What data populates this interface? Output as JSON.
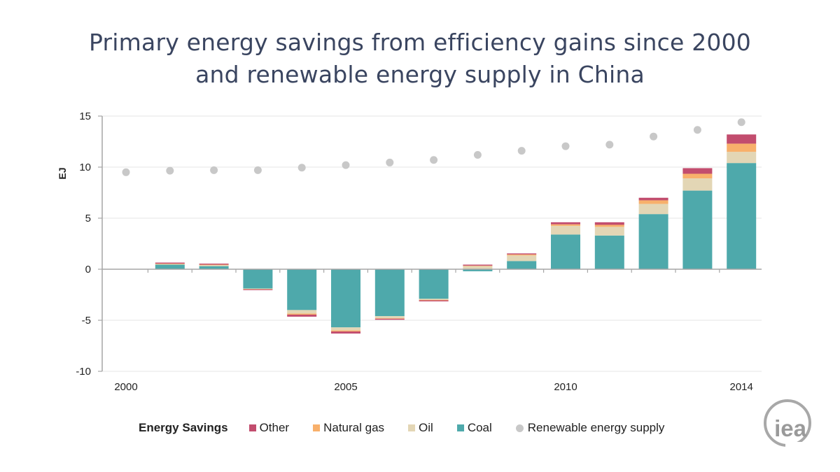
{
  "title_line1": "Primary energy savings from efficiency gains since 2000",
  "title_line2": "and renewable energy supply in China",
  "logo": {
    "text": "iea",
    "color": "#a0a0a0"
  },
  "legend": {
    "header": "Energy Savings",
    "items": [
      {
        "label": "Other",
        "color": "#c24d6e",
        "marker": "square"
      },
      {
        "label": "Natural gas",
        "color": "#f8b06b",
        "marker": "square"
      },
      {
        "label": "Oil",
        "color": "#e3d6b5",
        "marker": "square"
      },
      {
        "label": "Coal",
        "color": "#4ea9ab",
        "marker": "square"
      },
      {
        "label": "Renewable energy supply",
        "color": "#c8c8c8",
        "marker": "circle"
      }
    ]
  },
  "chart_data": {
    "type": "bar",
    "stacked": true,
    "ylabel": "EJ",
    "xlabel": "",
    "ylim": [
      -10,
      15
    ],
    "yticks": [
      15,
      10,
      5,
      0,
      -5,
      -10
    ],
    "grid": true,
    "legend_position": "bottom",
    "categories": [
      2000,
      2001,
      2002,
      2003,
      2004,
      2005,
      2006,
      2007,
      2008,
      2009,
      2010,
      2011,
      2012,
      2013,
      2014
    ],
    "xtick_labels": [
      {
        "x": 2000,
        "label": "2000"
      },
      {
        "x": 2005,
        "label": "2005"
      },
      {
        "x": 2010,
        "label": "2010"
      },
      {
        "x": 2014,
        "label": "2014"
      }
    ],
    "series": [
      {
        "name": "Coal",
        "color": "#4ea9ab",
        "values": [
          0,
          0.45,
          0.3,
          -1.9,
          -4.0,
          -5.7,
          -4.6,
          -2.9,
          -0.2,
          0.8,
          3.4,
          3.3,
          5.4,
          7.7,
          10.4
        ]
      },
      {
        "name": "Oil",
        "color": "#e3d6b5",
        "values": [
          0,
          0.05,
          0.1,
          -0.05,
          -0.35,
          -0.3,
          -0.2,
          -0.1,
          0.3,
          0.55,
          0.85,
          0.85,
          1.0,
          1.2,
          1.1
        ]
      },
      {
        "name": "Natural gas",
        "color": "#f8b06b",
        "values": [
          0,
          0.05,
          0.05,
          -0.03,
          -0.1,
          -0.1,
          -0.05,
          -0.05,
          0.05,
          0.1,
          0.15,
          0.2,
          0.35,
          0.45,
          0.8
        ]
      },
      {
        "name": "Other",
        "color": "#c24d6e",
        "values": [
          0,
          0.1,
          0.1,
          -0.07,
          -0.2,
          -0.2,
          -0.1,
          -0.1,
          0.1,
          0.1,
          0.2,
          0.25,
          0.25,
          0.55,
          0.9
        ]
      }
    ],
    "scatter": {
      "name": "Renewable energy supply",
      "color": "#c8c8c8",
      "values": [
        9.5,
        9.65,
        9.7,
        9.7,
        9.95,
        10.2,
        10.45,
        10.7,
        11.2,
        11.6,
        12.05,
        12.2,
        13.0,
        13.65,
        14.4
      ]
    }
  }
}
